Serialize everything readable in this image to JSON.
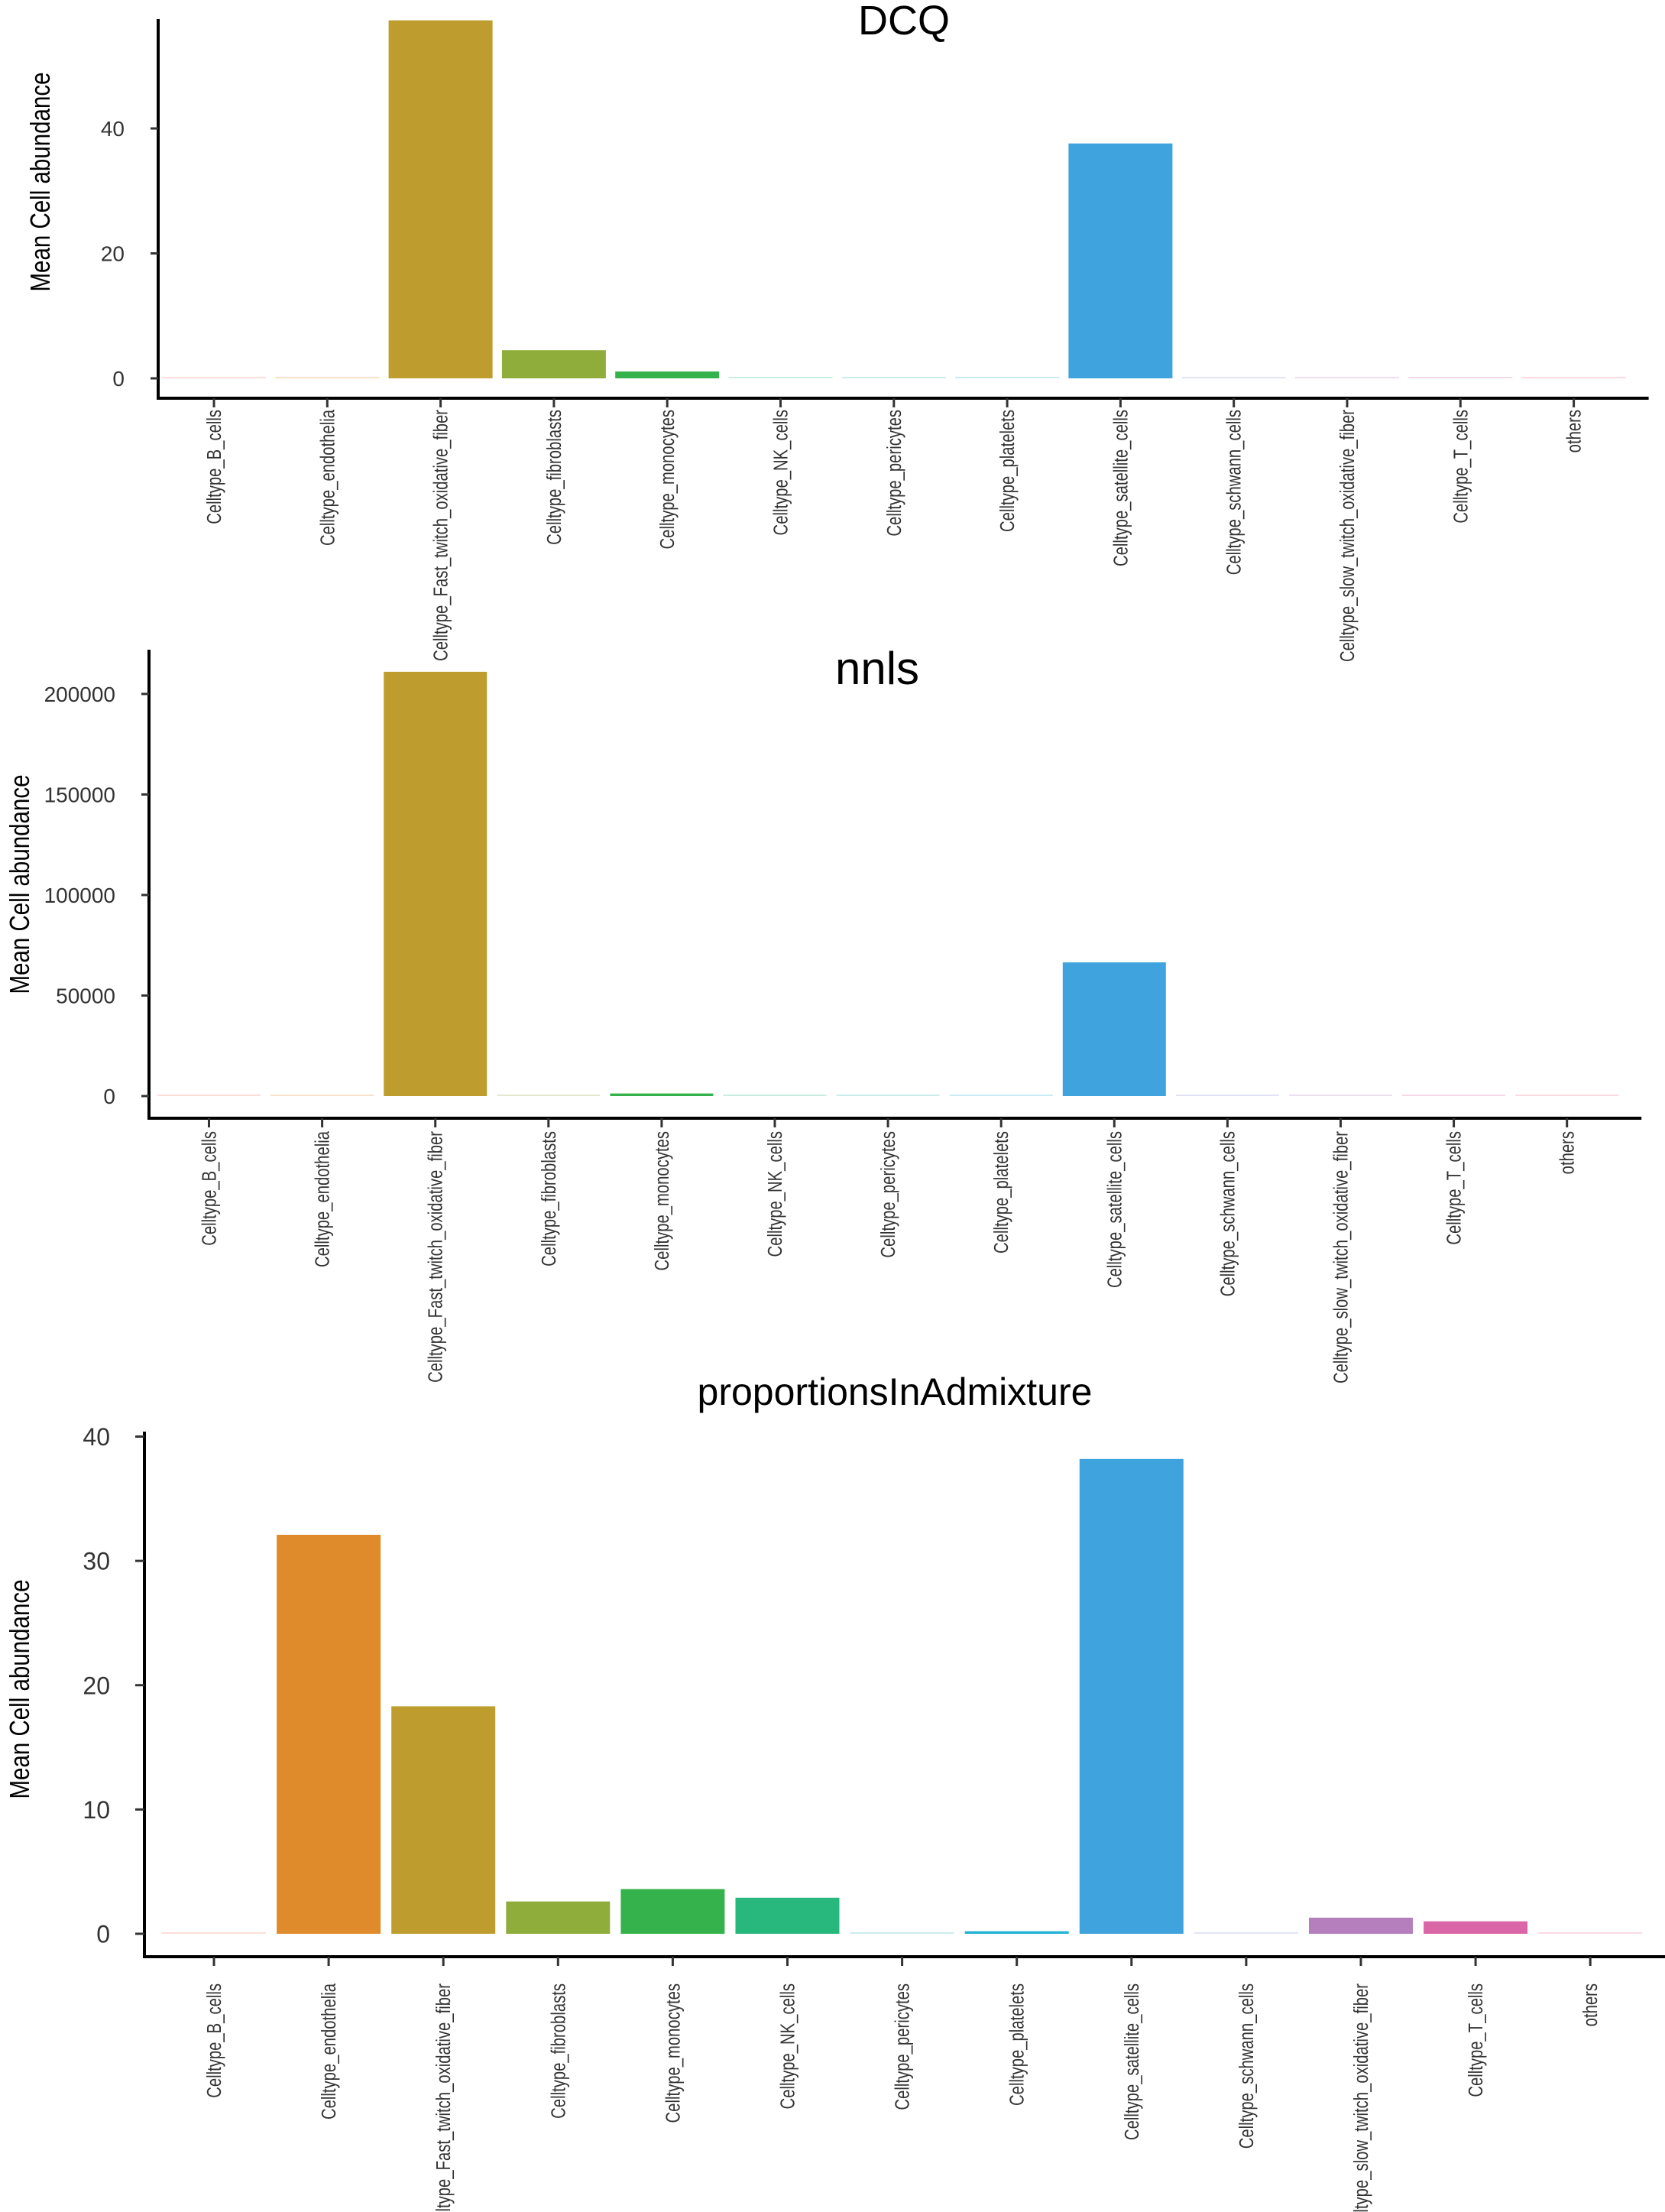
{
  "chart_data": [
    {
      "type": "bar",
      "title": "DCQ",
      "ylabel": "Mean Cell abundance",
      "xlabel": "",
      "ylim": [
        0,
        57.5
      ],
      "yticks": [
        0,
        20,
        40
      ],
      "categories": [
        "Celltype_B_cells",
        "Celltype_endothelia",
        "Celltype_Fast_twitch_oxidative_fiber",
        "Celltype_fibroblasts",
        "Celltype_monocytes",
        "Celltype_NK_cells",
        "Celltype_pericytes",
        "Celltype_platelets",
        "Celltype_satellite_cells",
        "Celltype_schwann_cells",
        "Celltype_slow_twitch_oxidative_fiber",
        "Celltype_T_cells",
        "others"
      ],
      "values": [
        0.01,
        0.01,
        57.3,
        4.5,
        1.1,
        0.01,
        0.01,
        0.01,
        37.6,
        0.01,
        0.01,
        0.01,
        0.01
      ],
      "grid": false,
      "legend": "none"
    },
    {
      "type": "bar",
      "title": "nnls",
      "ylabel": "Mean Cell abundance",
      "xlabel": "",
      "ylim": [
        0,
        222000
      ],
      "yticks": [
        0,
        50000,
        100000,
        150000,
        200000
      ],
      "categories": [
        "Celltype_B_cells",
        "Celltype_endothelia",
        "Celltype_Fast_twitch_oxidative_fiber",
        "Celltype_fibroblasts",
        "Celltype_monocytes",
        "Celltype_NK_cells",
        "Celltype_pericytes",
        "Celltype_platelets",
        "Celltype_satellite_cells",
        "Celltype_schwann_cells",
        "Celltype_slow_twitch_oxidative_fiber",
        "Celltype_T_cells",
        "others"
      ],
      "values": [
        100,
        100,
        211000,
        300,
        1300,
        100,
        100,
        100,
        66500,
        100,
        100,
        100,
        100
      ],
      "grid": false,
      "legend": "none"
    },
    {
      "type": "bar",
      "title": "proportionsInAdmixture",
      "ylabel": "Mean Cell abundance",
      "xlabel": "",
      "ylim": [
        0,
        40.4
      ],
      "yticks": [
        0,
        10,
        20,
        30,
        40
      ],
      "categories": [
        "Celltype_B_cells",
        "Celltype_endothelia",
        "Celltype_Fast_twitch_oxidative_fiber",
        "Celltype_fibroblasts",
        "Celltype_monocytes",
        "Celltype_NK_cells",
        "Celltype_pericytes",
        "Celltype_platelets",
        "Celltype_satellite_cells",
        "Celltype_schwann_cells",
        "Celltype_slow_twitch_oxidative_fiber",
        "Celltype_T_cells",
        "others"
      ],
      "values": [
        0.02,
        32.1,
        18.3,
        2.6,
        3.6,
        2.9,
        0.12,
        0.2,
        38.2,
        0.02,
        1.3,
        1.0,
        0.02
      ],
      "grid": false,
      "legend": "none"
    }
  ],
  "colors": [
    "#F8766D",
    "#E08B2B",
    "#BE9C2E",
    "#8EAD3A",
    "#35B24B",
    "#28B77D",
    "#2BB7AF",
    "#21B2D4",
    "#3FA3DE",
    "#8B8FDC",
    "#B57FBE",
    "#DB66A7",
    "#EF6D8D"
  ]
}
